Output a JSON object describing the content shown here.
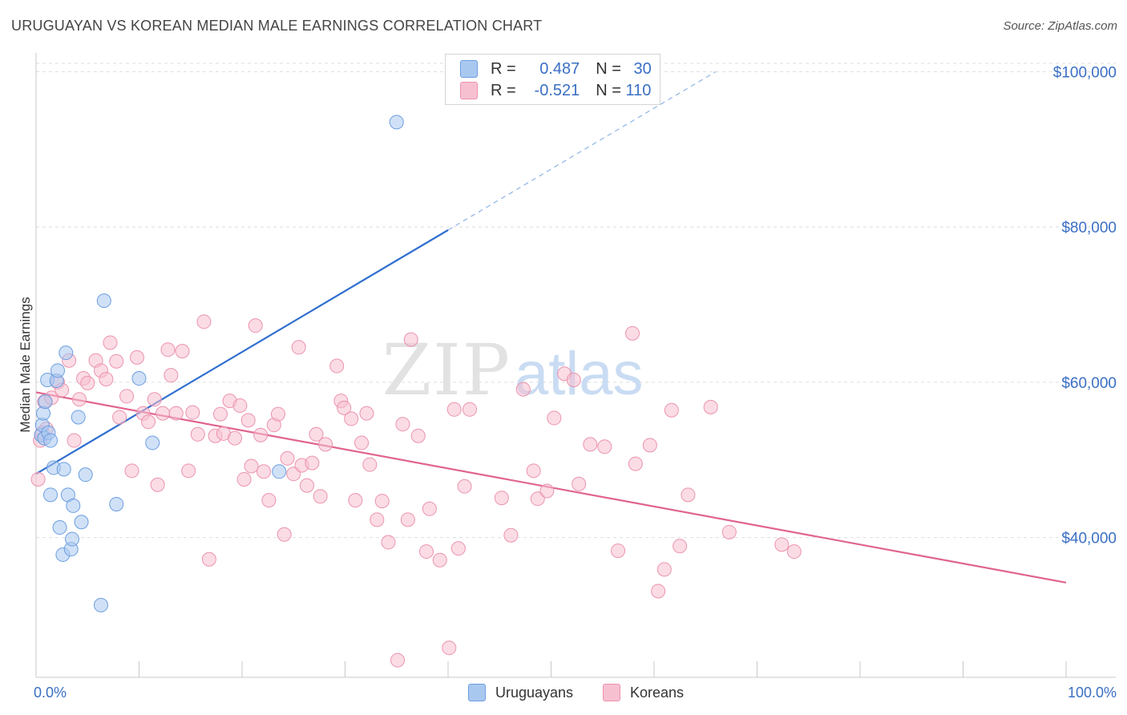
{
  "title": "URUGUAYAN VS KOREAN MEDIAN MALE EARNINGS CORRELATION CHART",
  "source": "Source: ZipAtlas.com",
  "watermark": {
    "zip": "ZIP",
    "atlas": "atlas"
  },
  "legend": {
    "rows": [
      {
        "r_label": "R = ",
        "r_value": "0.487",
        "n_label": "N = ",
        "n_value": "30",
        "color": "#a9c8f0",
        "stroke": "#6c9ee0"
      },
      {
        "r_label": "R = ",
        "r_value": "-0.521",
        "n_label": "N = ",
        "n_value": "110",
        "color": "#f7c0d0",
        "stroke": "#eb93ad"
      }
    ]
  },
  "bottom_legend": [
    "Uruguayans",
    "Koreans"
  ],
  "chart_data": {
    "type": "scatter",
    "title": "URUGUAYAN VS KOREAN MEDIAN MALE EARNINGS CORRELATION CHART",
    "xlabel": "",
    "ylabel": "Median Male Earnings",
    "xlim": [
      0,
      100
    ],
    "ylim": [
      22000,
      102000
    ],
    "x_tick_labels": [
      "0.0%",
      "100.0%"
    ],
    "y_ticks": [
      40000,
      60000,
      80000,
      100000
    ],
    "y_tick_labels": [
      "$40,000",
      "$60,000",
      "$80,000",
      "$100,000"
    ],
    "grid": true,
    "legend_position": "top-center",
    "series": [
      {
        "name": "Uruguayans",
        "color": "#a9c8f0",
        "stroke": "#6c9ee0",
        "points": [
          [
            0.5,
            53.2
          ],
          [
            0.6,
            54.5
          ],
          [
            0.7,
            56.0
          ],
          [
            0.8,
            52.8
          ],
          [
            0.9,
            57.5
          ],
          [
            1.1,
            60.3
          ],
          [
            1.2,
            53.5
          ],
          [
            1.4,
            52.5
          ],
          [
            1.4,
            45.5
          ],
          [
            1.7,
            49.0
          ],
          [
            2.0,
            60.2
          ],
          [
            2.1,
            61.5
          ],
          [
            2.3,
            41.3
          ],
          [
            2.6,
            37.8
          ],
          [
            2.7,
            48.8
          ],
          [
            2.9,
            63.8
          ],
          [
            3.1,
            45.5
          ],
          [
            3.4,
            38.5
          ],
          [
            3.5,
            39.8
          ],
          [
            3.6,
            44.1
          ],
          [
            4.1,
            55.5
          ],
          [
            4.4,
            42.0
          ],
          [
            4.8,
            48.1
          ],
          [
            6.3,
            31.3
          ],
          [
            6.6,
            70.5
          ],
          [
            7.8,
            44.3
          ],
          [
            10.0,
            60.5
          ],
          [
            11.3,
            52.2
          ],
          [
            23.6,
            48.5
          ],
          [
            35.0,
            93.5
          ]
        ],
        "trend": {
          "x0": 0,
          "y0": 48.2,
          "x1": 40.0,
          "y1": 79.6,
          "x_dash_end": 66.0,
          "y_dash_end": 100.0
        }
      },
      {
        "name": "Koreans",
        "color": "#f7c0d0",
        "stroke": "#eb93ad",
        "points": [
          [
            0.2,
            47.5
          ],
          [
            0.4,
            52.5
          ],
          [
            0.6,
            53.5
          ],
          [
            0.8,
            57.5
          ],
          [
            1.0,
            54.0
          ],
          [
            1.5,
            58.0
          ],
          [
            2.1,
            60.0
          ],
          [
            2.5,
            59.0
          ],
          [
            3.2,
            62.8
          ],
          [
            3.7,
            52.5
          ],
          [
            4.2,
            57.8
          ],
          [
            4.6,
            60.5
          ],
          [
            5.0,
            59.9
          ],
          [
            5.8,
            62.8
          ],
          [
            6.3,
            61.5
          ],
          [
            6.8,
            60.4
          ],
          [
            7.2,
            65.1
          ],
          [
            7.8,
            62.7
          ],
          [
            8.1,
            55.5
          ],
          [
            8.8,
            58.2
          ],
          [
            9.3,
            48.6
          ],
          [
            9.8,
            63.2
          ],
          [
            10.4,
            56.0
          ],
          [
            10.9,
            54.9
          ],
          [
            11.5,
            57.8
          ],
          [
            11.8,
            46.8
          ],
          [
            12.3,
            56.0
          ],
          [
            12.8,
            64.2
          ],
          [
            13.1,
            60.9
          ],
          [
            13.6,
            56.0
          ],
          [
            14.2,
            64.0
          ],
          [
            14.8,
            48.6
          ],
          [
            15.2,
            56.1
          ],
          [
            15.7,
            53.3
          ],
          [
            16.3,
            67.8
          ],
          [
            16.8,
            37.2
          ],
          [
            17.4,
            53.1
          ],
          [
            17.9,
            55.9
          ],
          [
            18.2,
            53.4
          ],
          [
            18.8,
            57.6
          ],
          [
            19.3,
            52.8
          ],
          [
            19.8,
            57.0
          ],
          [
            20.2,
            47.5
          ],
          [
            20.6,
            55.1
          ],
          [
            20.9,
            49.2
          ],
          [
            21.3,
            67.3
          ],
          [
            21.8,
            53.2
          ],
          [
            22.1,
            48.5
          ],
          [
            22.6,
            44.8
          ],
          [
            23.1,
            54.5
          ],
          [
            23.5,
            55.9
          ],
          [
            24.1,
            40.4
          ],
          [
            24.4,
            50.2
          ],
          [
            25.0,
            48.2
          ],
          [
            25.5,
            64.5
          ],
          [
            25.8,
            49.3
          ],
          [
            26.3,
            46.7
          ],
          [
            26.8,
            49.6
          ],
          [
            27.2,
            53.3
          ],
          [
            27.6,
            45.3
          ],
          [
            28.1,
            52.0
          ],
          [
            29.2,
            62.1
          ],
          [
            29.6,
            57.6
          ],
          [
            29.9,
            56.7
          ],
          [
            30.6,
            55.3
          ],
          [
            31.0,
            44.8
          ],
          [
            31.6,
            52.2
          ],
          [
            32.1,
            56.0
          ],
          [
            32.4,
            49.4
          ],
          [
            33.1,
            42.3
          ],
          [
            33.6,
            44.7
          ],
          [
            34.2,
            39.4
          ],
          [
            35.1,
            24.2
          ],
          [
            35.6,
            54.6
          ],
          [
            36.1,
            42.3
          ],
          [
            36.4,
            65.5
          ],
          [
            37.1,
            53.1
          ],
          [
            37.9,
            38.2
          ],
          [
            38.2,
            43.7
          ],
          [
            39.2,
            37.1
          ],
          [
            40.1,
            25.8
          ],
          [
            40.6,
            56.5
          ],
          [
            41.0,
            38.6
          ],
          [
            41.6,
            46.6
          ],
          [
            42.1,
            56.5
          ],
          [
            45.2,
            45.1
          ],
          [
            46.1,
            40.3
          ],
          [
            47.3,
            59.1
          ],
          [
            48.3,
            48.6
          ],
          [
            48.7,
            45.0
          ],
          [
            49.6,
            46.0
          ],
          [
            50.3,
            55.4
          ],
          [
            51.3,
            61.1
          ],
          [
            52.2,
            60.3
          ],
          [
            52.7,
            46.9
          ],
          [
            53.8,
            52.0
          ],
          [
            55.2,
            51.7
          ],
          [
            56.5,
            38.3
          ],
          [
            57.9,
            66.3
          ],
          [
            58.2,
            49.5
          ],
          [
            59.6,
            51.9
          ],
          [
            60.4,
            33.1
          ],
          [
            61.0,
            35.9
          ],
          [
            61.7,
            56.4
          ],
          [
            62.5,
            38.9
          ],
          [
            63.3,
            45.5
          ],
          [
            65.5,
            56.8
          ],
          [
            67.3,
            40.7
          ],
          [
            72.4,
            39.1
          ],
          [
            73.6,
            38.2
          ]
        ],
        "trend": {
          "x0": 0,
          "y0": 58.7,
          "x1": 100.0,
          "y1": 34.2
        }
      }
    ]
  }
}
